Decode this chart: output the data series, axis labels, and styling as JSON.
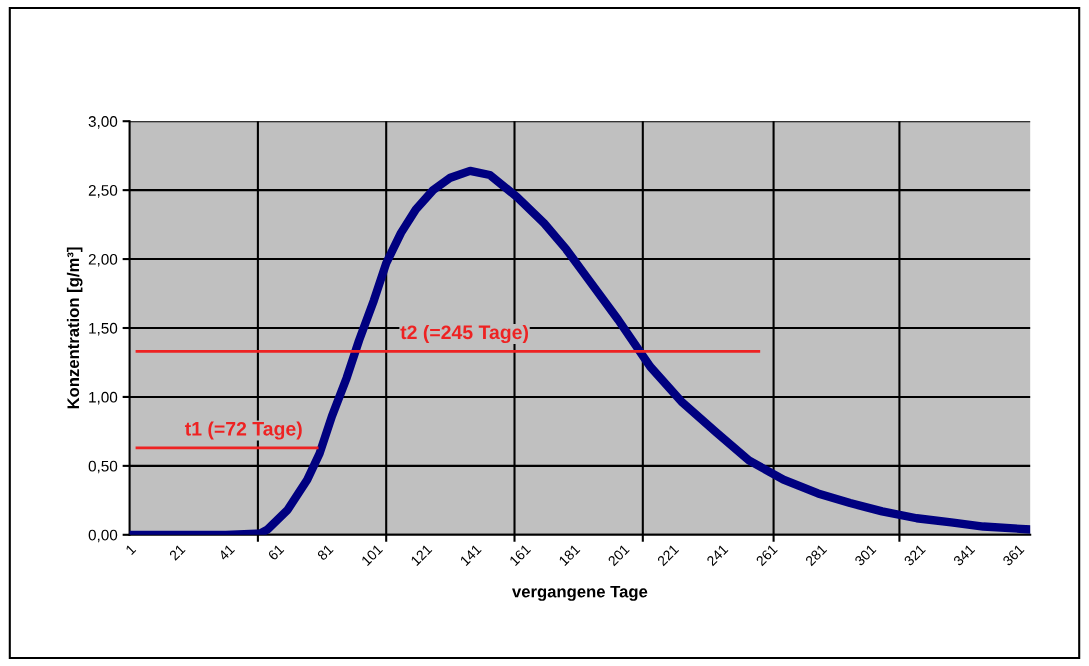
{
  "chart_data": {
    "type": "line",
    "xlabel": "vergangene Tage",
    "ylabel": "Konzentration [g/m³]",
    "xlim": [
      1,
      366
    ],
    "ylim": [
      0,
      3
    ],
    "xticks": [
      1,
      21,
      41,
      61,
      81,
      101,
      121,
      141,
      161,
      181,
      201,
      221,
      241,
      261,
      281,
      301,
      321,
      341,
      361,
      {
        "value": 53,
        "label": null
      },
      {
        "value": 105,
        "label": null
      },
      {
        "value": 157,
        "label": null
      },
      {
        "value": 209,
        "label": null
      },
      {
        "value": 262,
        "label": null
      },
      {
        "value": 313,
        "label": null
      }
    ],
    "yticks": [
      {
        "value": 0,
        "label": "0,00"
      },
      {
        "value": 0.5,
        "label": "0,50"
      },
      {
        "value": 1,
        "label": "1,00"
      },
      {
        "value": 1.5,
        "label": "1,50"
      },
      {
        "value": 2,
        "label": "2,00"
      },
      {
        "value": 2.5,
        "label": "2,50"
      },
      {
        "value": 3,
        "label": "3,00"
      }
    ],
    "grid": true,
    "legend": false,
    "marker": "none",
    "line_style": "solid",
    "series": [
      {
        "color": "#000080",
        "x": [
          1,
          20,
          40,
          54,
          57,
          65,
          73,
          78,
          83,
          89,
          94,
          100,
          105,
          111,
          117,
          124,
          131,
          139,
          147,
          158,
          169,
          178,
          185,
          199,
          212,
          225,
          239,
          252,
          266,
          280,
          293,
          306,
          320,
          334,
          347,
          365
        ],
        "values": [
          0,
          0,
          0,
          0.01,
          0.04,
          0.18,
          0.4,
          0.59,
          0.86,
          1.14,
          1.41,
          1.7,
          1.97,
          2.19,
          2.36,
          2.5,
          2.59,
          2.64,
          2.61,
          2.45,
          2.26,
          2.07,
          1.9,
          1.56,
          1.22,
          0.96,
          0.74,
          0.54,
          0.4,
          0.3,
          0.23,
          0.17,
          0.12,
          0.09,
          0.06,
          0.04
        ]
      },
      {
        "name": "t1 (=72 Tage)",
        "color": "#ee2222",
        "x": [
          4,
          77
        ],
        "values": [
          0.63,
          0.63
        ]
      },
      {
        "name": "t2 (=245 Tage)",
        "color": "#ee2222",
        "x": [
          4,
          256
        ],
        "values": [
          1.33,
          1.33
        ]
      }
    ]
  }
}
